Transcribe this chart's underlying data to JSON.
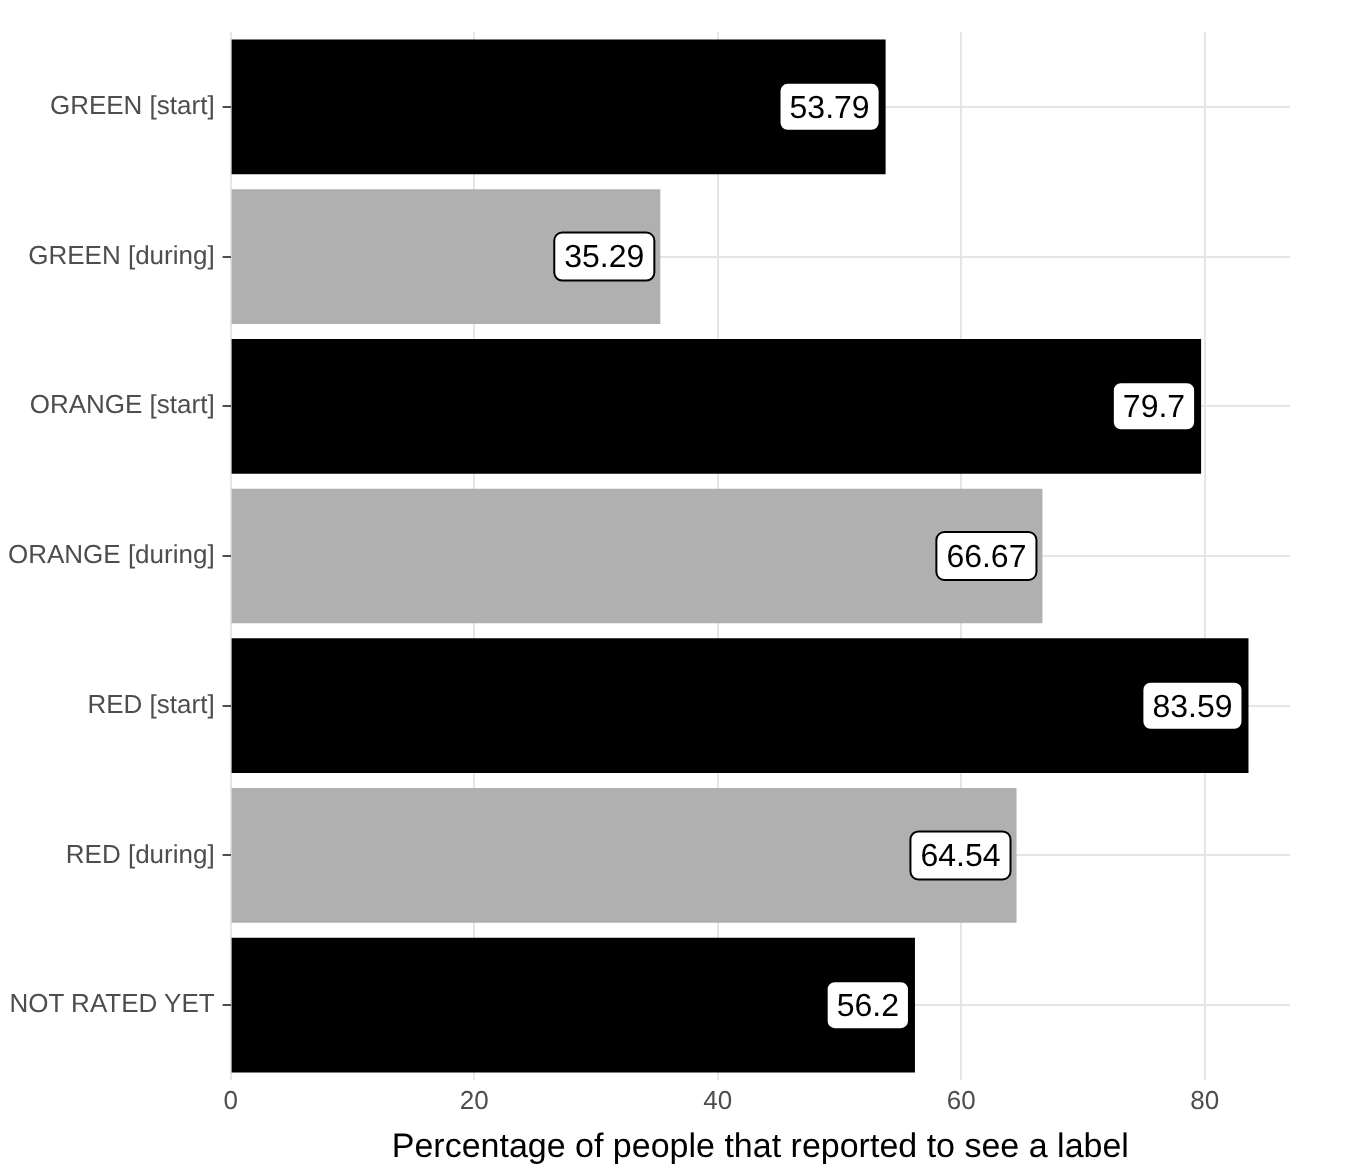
{
  "chart_data": {
    "type": "bar",
    "orientation": "horizontal",
    "xlabel": "Percentage of people that reported to see a label",
    "categories": [
      "GREEN [start]",
      "GREEN [during]",
      "ORANGE [start]",
      "ORANGE [during]",
      "RED [start]",
      "RED [during]",
      "NOT RATED YET"
    ],
    "values": [
      53.79,
      35.29,
      79.7,
      66.67,
      83.59,
      64.54,
      56.2
    ],
    "colors": [
      "#000000",
      "#b0b0b0",
      "#000000",
      "#b0b0b0",
      "#000000",
      "#b0b0b0",
      "#000000"
    ],
    "xlim": [
      0,
      87
    ],
    "xticks": [
      0,
      20,
      40,
      60,
      80
    ],
    "grid": true,
    "data_labels": true
  }
}
